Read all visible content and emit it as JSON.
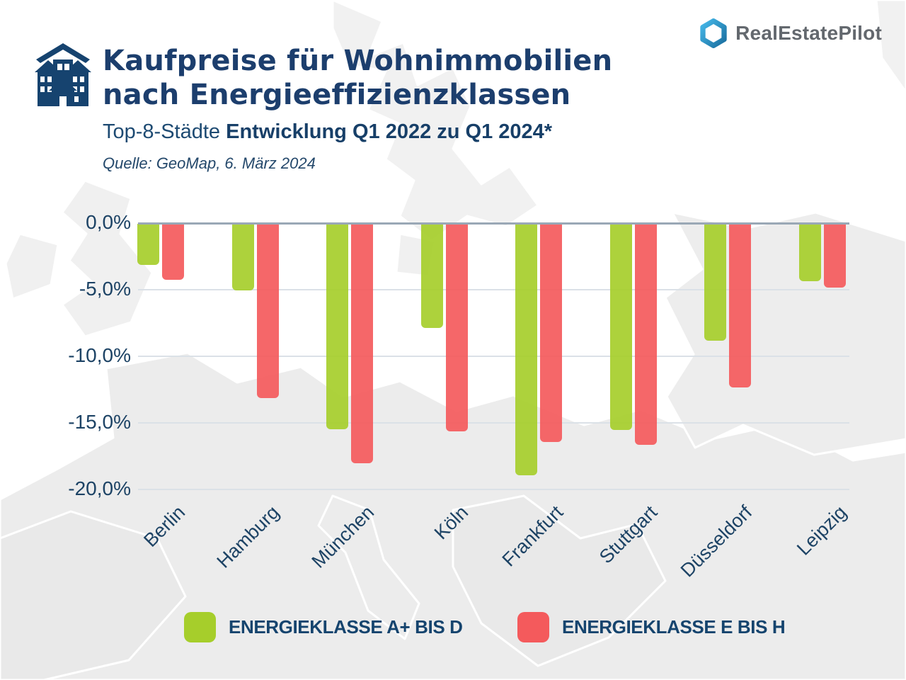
{
  "header": {
    "title_line1": "Kaufpreise für Wohnimmobilien",
    "title_line2": "nach Energieeffizienzklassen",
    "subtitle_regular": "Top-8-Städte ",
    "subtitle_bold": "Entwicklung Q1 2022 zu Q1 2024*",
    "source": "Quelle: GeoMap, 6. März 2024",
    "logo_text": "RealEstatePilot"
  },
  "chart_data": {
    "type": "bar",
    "title": "Kaufpreise für Wohnimmobilien nach Energieeffizienzklassen",
    "subtitle": "Top-8-Städte Entwicklung Q1 2022 zu Q1 2024*",
    "unit": "percent",
    "categories": [
      "Berlin",
      "Hamburg",
      "München",
      "Köln",
      "Frankfurt",
      "Stuttgart",
      "Düsseldorf",
      "Leipzig"
    ],
    "series": [
      {
        "name": "ENERGIEKLASSE A+ BIS D",
        "color": "#a6ce2b",
        "values": [
          -3.1,
          -5.0,
          -15.4,
          -7.8,
          -18.9,
          -15.5,
          -8.8,
          -4.3
        ]
      },
      {
        "name": "ENERGIEKLASSE E BIS H",
        "color": "#f45a5c",
        "values": [
          -4.2,
          -13.1,
          -18.0,
          -15.6,
          -16.4,
          -16.6,
          -12.3,
          -4.8
        ]
      }
    ],
    "ylim": [
      -20,
      0
    ],
    "yticks": [
      0,
      -5,
      -10,
      -15,
      -20
    ],
    "ytick_labels": [
      "0,0%",
      "-5,0%",
      "-10,0%",
      "-15,0%",
      "-20,0%"
    ],
    "grid": true,
    "legend_position": "bottom"
  },
  "legend": {
    "items": [
      {
        "label": "ENERGIEKLASSE A+ BIS D",
        "color": "#a6ce2b"
      },
      {
        "label": "ENERGIEKLASSE E BIS H",
        "color": "#f45a5c"
      }
    ]
  },
  "colors": {
    "title": "#1c3e6d",
    "axis_text": "#1d4365",
    "zero_line": "#9aa8b6",
    "gridline": "#dbe1e7",
    "logo_blue_light": "#45b7e8",
    "logo_blue_dark": "#1a6fa0",
    "icon_navy": "#16436f"
  }
}
